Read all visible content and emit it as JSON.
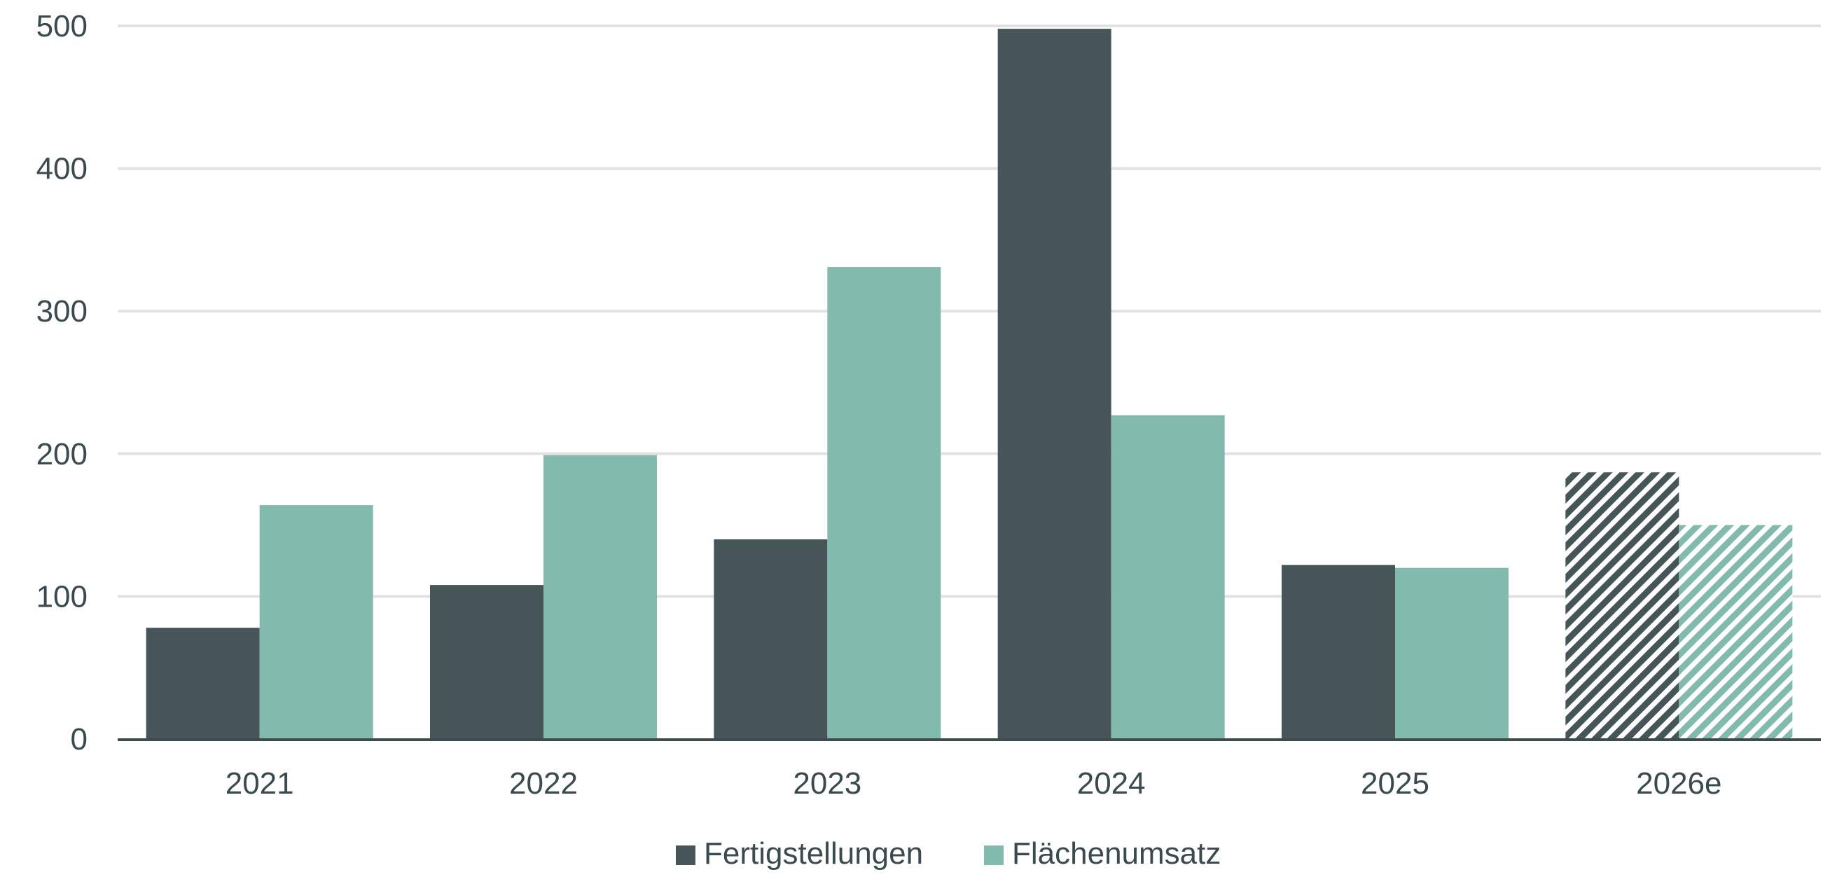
{
  "chart_data": {
    "type": "bar",
    "categories": [
      "2021",
      "2022",
      "2023",
      "2024",
      "2025",
      "2026e"
    ],
    "series": [
      {
        "name": "Fertigstellungen",
        "values": [
          78,
          108,
          140,
          498,
          122,
          187
        ],
        "color": "#455558",
        "estimate_pattern": [
          false,
          false,
          false,
          false,
          false,
          true
        ]
      },
      {
        "name": "Flächenumsatz",
        "values": [
          164,
          199,
          331,
          227,
          120,
          150
        ],
        "color": "#82bbad",
        "estimate_pattern": [
          false,
          false,
          false,
          false,
          false,
          true
        ]
      }
    ],
    "ylim": [
      0,
      500
    ],
    "yticks": [
      0,
      100,
      200,
      300,
      400,
      500
    ],
    "grid": true,
    "legend_position": "bottom-center",
    "title": "",
    "xlabel": "",
    "ylabel": ""
  },
  "colors": {
    "gridline": "#e2e2e2",
    "axis": "#3f4b4f",
    "text": "#3a4a4e"
  }
}
